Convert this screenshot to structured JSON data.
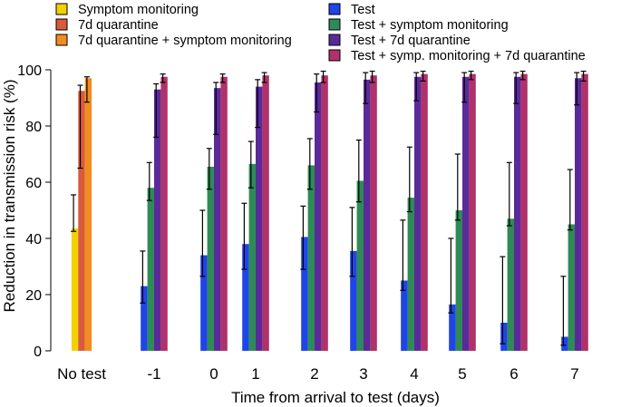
{
  "chart_data": {
    "type": "bar",
    "xlabel": "Time from arrival to test (days)",
    "ylabel": "Reduction in transmission risk (%)",
    "ylim": [
      0,
      100
    ],
    "yticks": [
      0,
      20,
      40,
      60,
      80,
      100
    ],
    "grid": false,
    "legend_position": "top",
    "groups": [
      "No test",
      "-1",
      "0",
      "1",
      "2",
      "3",
      "4",
      "5",
      "6",
      "7"
    ],
    "series": [
      {
        "name": "Symptom monitoring",
        "color": "#F5D000",
        "values": [
          43.5
        ],
        "err_low": [
          42.5
        ],
        "err_high": [
          55.5
        ],
        "groups": [
          0
        ]
      },
      {
        "name": "7d quarantine",
        "color": "#D95A3A",
        "values": [
          92.5
        ],
        "err_low": [
          65
        ],
        "err_high": [
          94.5
        ],
        "groups": [
          0
        ]
      },
      {
        "name": "7d quarantine + symptom monitoring",
        "color": "#F28C1E",
        "values": [
          97
        ],
        "err_low": [
          88.5
        ],
        "err_high": [
          97.5
        ],
        "groups": [
          0
        ]
      },
      {
        "name": "Test",
        "color": "#1F44E8",
        "values": [
          23,
          34,
          38,
          40.5,
          35.5,
          25,
          16.5,
          10,
          5
        ],
        "err_low": [
          17,
          26.5,
          29,
          29,
          26.5,
          21.5,
          13.5,
          2.5,
          2
        ],
        "err_high": [
          35.5,
          50,
          52.5,
          51.5,
          51,
          46.5,
          40,
          33.5,
          26.5
        ],
        "groups": [
          1,
          2,
          3,
          4,
          5,
          6,
          7,
          8,
          9
        ]
      },
      {
        "name": "Test + symptom monitoring",
        "color": "#2E8B57",
        "values": [
          58,
          65.5,
          66.5,
          66,
          60.5,
          54.5,
          50,
          47,
          45
        ],
        "err_low": [
          53.5,
          57.5,
          58,
          57.5,
          53,
          49.5,
          46.5,
          44.5,
          43
        ],
        "err_high": [
          67,
          72,
          74.5,
          75.5,
          75,
          72.5,
          70,
          67,
          64.5
        ],
        "groups": [
          1,
          2,
          3,
          4,
          5,
          6,
          7,
          8,
          9
        ]
      },
      {
        "name": "Test + 7d quarantine",
        "color": "#5B2A9A",
        "values": [
          93,
          93.5,
          94,
          95.5,
          96.5,
          97.5,
          97.5,
          97.5,
          97
        ],
        "err_low": [
          76,
          77,
          79.5,
          85,
          88,
          89,
          88.5,
          88,
          87.5
        ],
        "err_high": [
          95,
          95.5,
          96.5,
          98.5,
          99,
          99,
          99,
          99,
          99
        ],
        "groups": [
          1,
          2,
          3,
          4,
          5,
          6,
          7,
          8,
          9
        ]
      },
      {
        "name": "Test + symp. monitoring + 7d quarantine",
        "color": "#B0326A",
        "values": [
          97.5,
          97.5,
          98,
          98,
          98,
          98.5,
          98.5,
          98.5,
          98.5
        ],
        "err_low": [
          95.5,
          95.5,
          95.5,
          95.5,
          95.5,
          96,
          96.5,
          96.5,
          96
        ],
        "err_high": [
          98.5,
          98.5,
          99,
          99.5,
          99.5,
          99.5,
          99.5,
          99.5,
          99.5
        ],
        "groups": [
          1,
          2,
          3,
          4,
          5,
          6,
          7,
          8,
          9
        ]
      }
    ]
  }
}
